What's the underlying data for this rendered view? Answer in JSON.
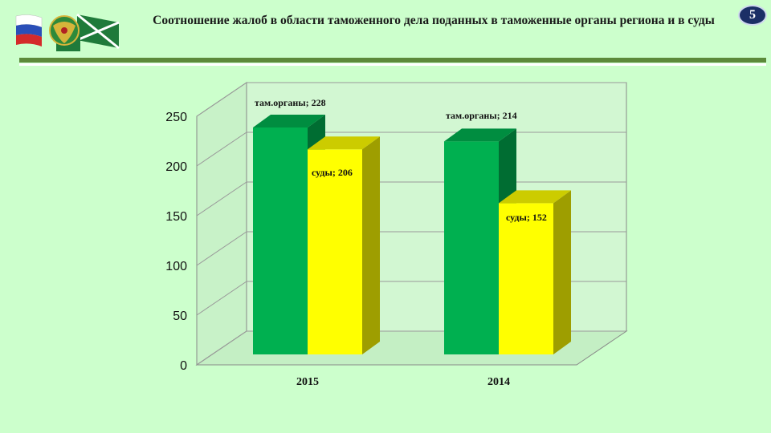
{
  "header": {
    "title": "Соотношение жалоб в области таможенного дела поданных в таможенные органы региона и в суды",
    "slide_number": "5",
    "emblem_icon": "customs-emblem-icon",
    "flag_icon": "russian-flag-icon"
  },
  "colors": {
    "background": "#ccffcc",
    "series_green": "#00b050",
    "series_yellow": "#ffff00"
  },
  "chart_data": {
    "type": "bar",
    "style": "3d-clustered-column",
    "title": "",
    "xlabel": "",
    "ylabel": "",
    "categories": [
      "2015",
      "2014"
    ],
    "series": [
      {
        "name": "там.органы",
        "values": [
          228,
          214
        ],
        "labels": [
          "там.органы; 228",
          "там.органы; 214"
        ],
        "color": "#00b050"
      },
      {
        "name": "суды",
        "values": [
          206,
          152
        ],
        "labels": [
          "суды; 206",
          "суды; 152"
        ],
        "color": "#ffff00"
      }
    ],
    "ylim": [
      0,
      250
    ],
    "yticks": [
      "0",
      "50",
      "100",
      "150",
      "200",
      "250"
    ],
    "gridlines": true,
    "legend": "none"
  }
}
